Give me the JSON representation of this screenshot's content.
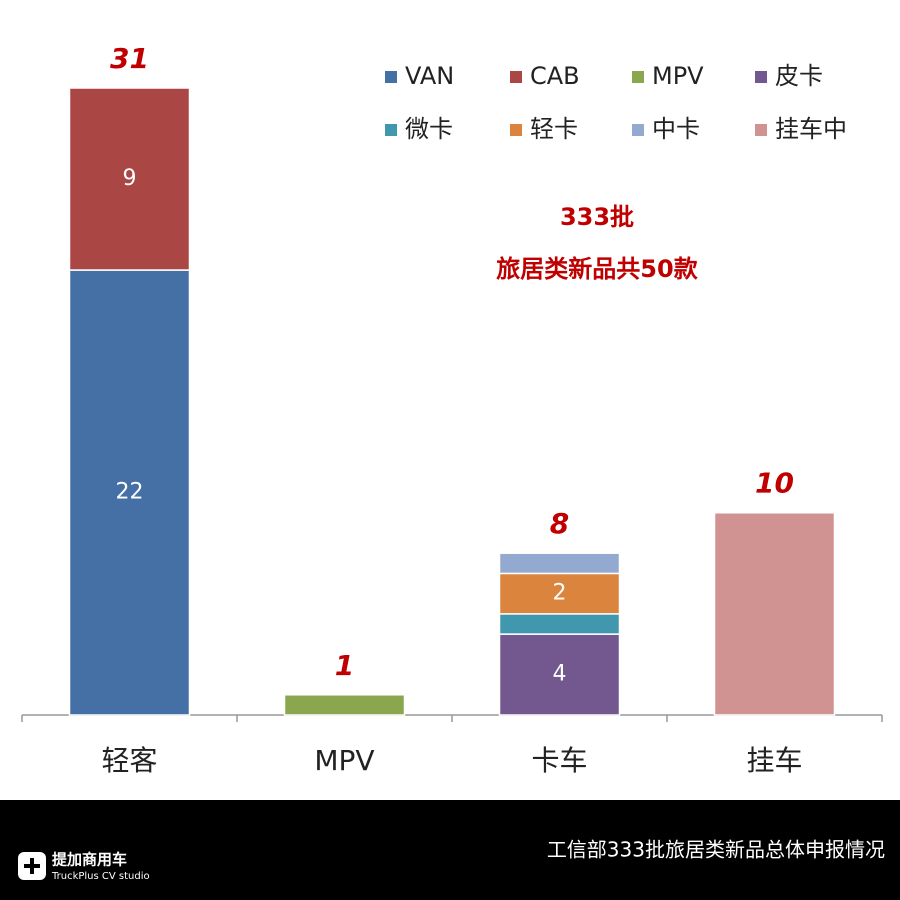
{
  "chart_data": {
    "type": "stacked_bar",
    "categories": [
      "轻客",
      "MPV",
      "卡车",
      "挂车"
    ],
    "series": [
      {
        "name": "VAN",
        "color": "#4570a6",
        "values": [
          22,
          null,
          null,
          null
        ],
        "show_values": true
      },
      {
        "name": "CAB",
        "color": "#aa4644",
        "values": [
          9,
          null,
          null,
          null
        ],
        "show_values": true
      },
      {
        "name": "MPV",
        "color": "#8aa64f",
        "values": [
          null,
          1,
          null,
          null
        ],
        "show_values": false
      },
      {
        "name": "皮卡",
        "color": "#72588f",
        "values": [
          null,
          null,
          4,
          null
        ],
        "show_values": true
      },
      {
        "name": "微卡",
        "color": "#4198ae",
        "values": [
          null,
          null,
          1,
          null
        ],
        "show_values": false
      },
      {
        "name": "轻卡",
        "color": "#db843e",
        "values": [
          null,
          null,
          2,
          null
        ],
        "show_values": true
      },
      {
        "name": "中卡",
        "color": "#94a9d0",
        "values": [
          null,
          null,
          1,
          null
        ],
        "show_values": false
      },
      {
        "name": "挂车中",
        "color": "#d19392",
        "values": [
          null,
          null,
          null,
          10
        ],
        "show_values": false
      }
    ],
    "totals": [
      31,
      1,
      8,
      10
    ],
    "ylim": [
      0,
      31
    ],
    "annotation": [
      "333批",
      "旅居类新品共50款"
    ]
  },
  "footer": {
    "logo": "提加商用车",
    "logo_sub": "TruckPlus CV studio",
    "caption": "工信部333批旅居类新品总体申报情况"
  }
}
